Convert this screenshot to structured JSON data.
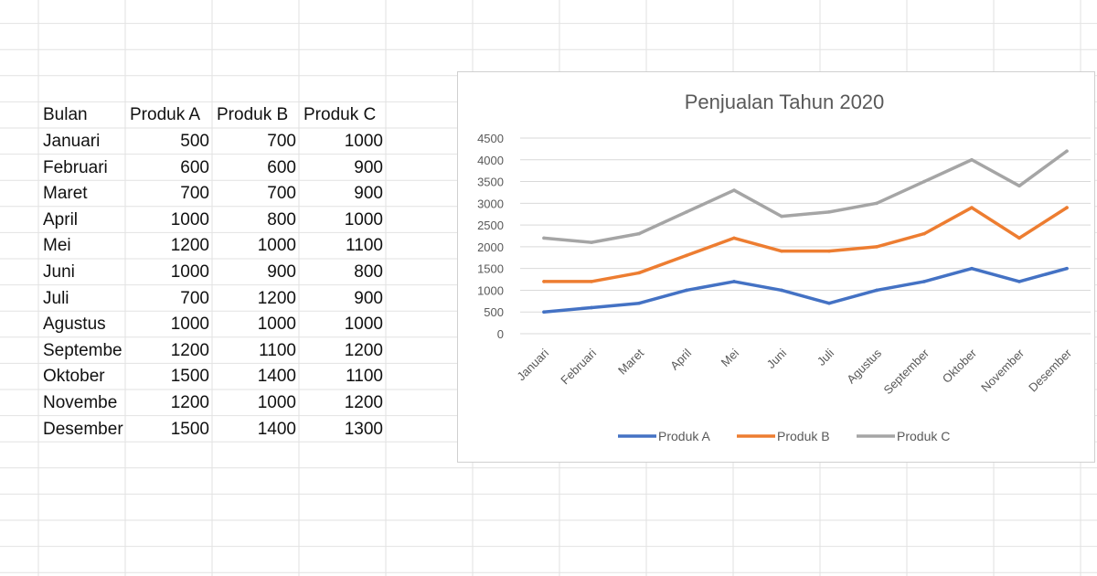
{
  "sheet": {
    "headers": [
      "Bulan",
      "Produk A",
      "Produk B",
      "Produk C"
    ],
    "rows": [
      [
        "Januari",
        "500",
        "700",
        "1000"
      ],
      [
        "Februari",
        "600",
        "600",
        "900"
      ],
      [
        "Maret",
        "700",
        "700",
        "900"
      ],
      [
        "April",
        "1000",
        "800",
        "1000"
      ],
      [
        "Mei",
        "1200",
        "1000",
        "1100"
      ],
      [
        "Juni",
        "1000",
        "900",
        "800"
      ],
      [
        "Juli",
        "700",
        "1200",
        "900"
      ],
      [
        "Agustus",
        "1000",
        "1000",
        "1000"
      ],
      [
        "Septembe",
        "1200",
        "1100",
        "1200"
      ],
      [
        "Oktober",
        "1500",
        "1400",
        "1100"
      ],
      [
        "Novembe",
        "1200",
        "1000",
        "1200"
      ],
      [
        "Desember",
        "1500",
        "1400",
        "1300"
      ]
    ]
  },
  "chart_data": {
    "type": "line",
    "title": "Penjualan Tahun 2020",
    "categories": [
      "Januari",
      "Februari",
      "Maret",
      "April",
      "Mei",
      "Juni",
      "Juli",
      "Agustus",
      "September",
      "Oktober",
      "November",
      "Desember"
    ],
    "series": [
      {
        "name": "Produk A",
        "color": "#4472c4",
        "values": [
          500,
          600,
          700,
          1000,
          1200,
          1000,
          700,
          1000,
          1200,
          1500,
          1200,
          1500
        ]
      },
      {
        "name": "Produk B",
        "color": "#ed7d31",
        "values": [
          1200,
          1200,
          1400,
          1800,
          2200,
          1900,
          1900,
          2000,
          2300,
          2900,
          2200,
          2900
        ]
      },
      {
        "name": "Produk C",
        "color": "#a5a5a5",
        "values": [
          2200,
          2100,
          2300,
          2800,
          3300,
          2700,
          2800,
          3000,
          3500,
          4000,
          3400,
          4200
        ]
      }
    ],
    "ylim": [
      0,
      4500
    ],
    "yticks": [
      0,
      500,
      1000,
      1500,
      2000,
      2500,
      3000,
      3500,
      4000,
      4500
    ],
    "grid": true,
    "legend": "bottom"
  }
}
